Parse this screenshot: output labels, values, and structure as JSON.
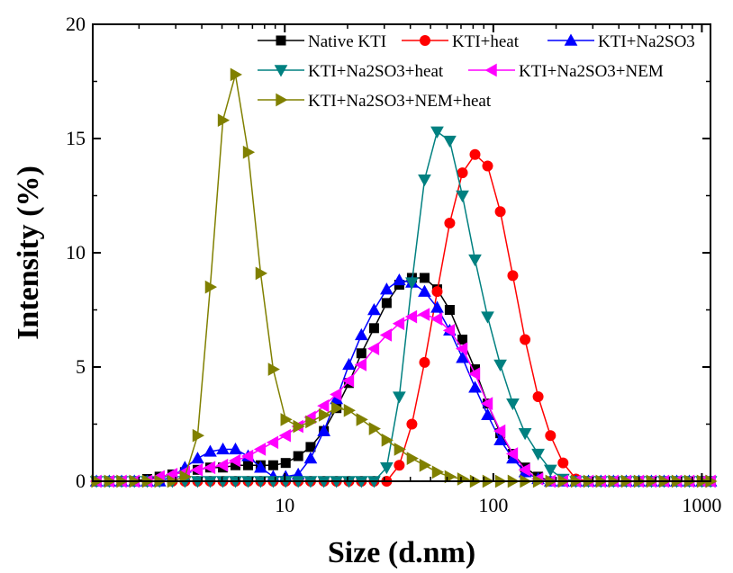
{
  "chart_data": {
    "type": "line",
    "title": "",
    "xlabel": "Size (d.nm)",
    "ylabel": "Intensity (%)",
    "x_scale": "log",
    "xlim": [
      1.2,
      1100
    ],
    "ylim": [
      0,
      20
    ],
    "x_ticks": [
      10,
      100,
      1000
    ],
    "y_ticks": [
      0,
      5,
      10,
      15,
      20
    ],
    "grid": false,
    "legend_position": "top-right",
    "series": [
      {
        "name": "Native KTI",
        "color": "#000000",
        "marker": "square",
        "x": [
          1.25,
          1.44,
          1.65,
          1.9,
          2.19,
          2.51,
          2.89,
          3.32,
          3.82,
          4.39,
          5.05,
          5.8,
          6.67,
          7.66,
          8.8,
          10.1,
          11.6,
          13.3,
          15.4,
          17.7,
          20.3,
          23.3,
          26.8,
          30.8,
          35.4,
          40.7,
          46.8,
          53.8,
          61.8,
          71.1,
          81.7,
          93.9,
          108,
          124,
          142,
          164,
          188,
          216,
          249,
          286,
          328,
          377,
          434,
          499,
          573,
          659,
          758,
          871,
          1001,
          1101
        ],
        "y": [
          0,
          0,
          0,
          0,
          0.1,
          0.2,
          0.3,
          0.4,
          0.5,
          0.6,
          0.6,
          0.7,
          0.7,
          0.7,
          0.7,
          0.8,
          1.1,
          1.5,
          2.2,
          3.2,
          4.3,
          5.6,
          6.7,
          7.8,
          8.6,
          8.9,
          8.9,
          8.4,
          7.5,
          6.2,
          4.9,
          3.4,
          2.1,
          1.2,
          0.6,
          0.2,
          0,
          0,
          0,
          0,
          0,
          0,
          0,
          0,
          0,
          0,
          0,
          0,
          0,
          0
        ]
      },
      {
        "name": "KTI+heat",
        "color": "#ff0000",
        "marker": "circle",
        "x": [
          1.25,
          1.44,
          1.65,
          1.9,
          2.19,
          2.51,
          2.89,
          3.32,
          3.82,
          4.39,
          5.05,
          5.8,
          6.67,
          7.66,
          8.8,
          10.1,
          11.6,
          13.3,
          15.4,
          17.7,
          20.3,
          23.3,
          26.8,
          30.8,
          35.4,
          40.7,
          46.8,
          53.8,
          61.8,
          71.1,
          81.7,
          93.9,
          108,
          124,
          142,
          164,
          188,
          216,
          249,
          286,
          328,
          377,
          434,
          499,
          573,
          659,
          758,
          871,
          1001,
          1101
        ],
        "y": [
          0,
          0,
          0,
          0,
          0,
          0,
          0,
          0,
          0,
          0,
          0,
          0,
          0,
          0,
          0,
          0,
          0,
          0,
          0,
          0,
          0,
          0,
          0,
          0,
          0.7,
          2.5,
          5.2,
          8.3,
          11.3,
          13.5,
          14.3,
          13.8,
          11.8,
          9.0,
          6.2,
          3.7,
          2.0,
          0.8,
          0.1,
          0,
          0,
          0,
          0,
          0,
          0,
          0,
          0,
          0,
          0,
          0
        ]
      },
      {
        "name": "KTI+Na2SO3",
        "color": "#0000ff",
        "marker": "triangle-up",
        "x": [
          1.25,
          1.44,
          1.65,
          1.9,
          2.19,
          2.51,
          2.89,
          3.32,
          3.82,
          4.39,
          5.05,
          5.8,
          6.67,
          7.66,
          8.8,
          10.1,
          11.6,
          13.3,
          15.4,
          17.7,
          20.3,
          23.3,
          26.8,
          30.8,
          35.4,
          40.7,
          46.8,
          53.8,
          61.8,
          71.1,
          81.7,
          93.9,
          108,
          124,
          142,
          164,
          188,
          216,
          249,
          286,
          328,
          377,
          434,
          499,
          573,
          659,
          758,
          871,
          1001,
          1101
        ],
        "y": [
          0,
          0,
          0,
          0,
          0,
          0,
          0.2,
          0.6,
          1.0,
          1.3,
          1.4,
          1.4,
          1.1,
          0.6,
          0.2,
          0.2,
          0.3,
          1.0,
          2.2,
          3.6,
          5.1,
          6.4,
          7.5,
          8.4,
          8.8,
          8.7,
          8.3,
          7.6,
          6.6,
          5.4,
          4.1,
          2.9,
          1.8,
          1.0,
          0.4,
          0.1,
          0,
          0,
          0,
          0,
          0,
          0,
          0,
          0,
          0,
          0,
          0,
          0,
          0,
          0
        ]
      },
      {
        "name": "KTI+Na2SO3+heat",
        "color": "#008080",
        "marker": "triangle-down",
        "x": [
          1.25,
          1.44,
          1.65,
          1.9,
          2.19,
          2.51,
          2.89,
          3.32,
          3.82,
          4.39,
          5.05,
          5.8,
          6.67,
          7.66,
          8.8,
          10.1,
          11.6,
          13.3,
          15.4,
          17.7,
          20.3,
          23.3,
          26.8,
          30.8,
          35.4,
          40.7,
          46.8,
          53.8,
          61.8,
          71.1,
          81.7,
          93.9,
          108,
          124,
          142,
          164,
          188,
          216,
          249,
          286,
          328,
          377,
          434,
          499,
          573,
          659,
          758,
          871,
          1001,
          1101
        ],
        "y": [
          0,
          0,
          0,
          0,
          0,
          0,
          0,
          0,
          0,
          0,
          0,
          0,
          0,
          0,
          0,
          0,
          0,
          0,
          0,
          0,
          0,
          0,
          0,
          0.6,
          3.7,
          8.7,
          13.2,
          15.3,
          14.9,
          12.5,
          9.7,
          7.2,
          5.1,
          3.4,
          2.1,
          1.2,
          0.5,
          0.1,
          0,
          0,
          0,
          0,
          0,
          0,
          0,
          0,
          0,
          0,
          0,
          0
        ]
      },
      {
        "name": "KTI+Na2SO3+NEM",
        "color": "#ff00ff",
        "marker": "triangle-left",
        "x": [
          1.25,
          1.44,
          1.65,
          1.9,
          2.19,
          2.51,
          2.89,
          3.32,
          3.82,
          4.39,
          5.05,
          5.8,
          6.67,
          7.66,
          8.8,
          10.1,
          11.6,
          13.3,
          15.4,
          17.7,
          20.3,
          23.3,
          26.8,
          30.8,
          35.4,
          40.7,
          46.8,
          53.8,
          61.8,
          71.1,
          81.7,
          93.9,
          108,
          124,
          142,
          164,
          188,
          216,
          249,
          286,
          328,
          377,
          434,
          499,
          573,
          659,
          758,
          871,
          1001,
          1101
        ],
        "y": [
          0,
          0,
          0,
          0,
          0,
          0.2,
          0.3,
          0.4,
          0.5,
          0.6,
          0.7,
          0.9,
          1.1,
          1.4,
          1.7,
          2.0,
          2.4,
          2.8,
          3.3,
          3.8,
          4.4,
          5.1,
          5.8,
          6.4,
          6.9,
          7.2,
          7.3,
          7.1,
          6.6,
          5.8,
          4.7,
          3.4,
          2.2,
          1.2,
          0.5,
          0.1,
          0,
          0,
          0,
          0,
          0,
          0,
          0,
          0,
          0,
          0,
          0,
          0,
          0,
          0
        ]
      },
      {
        "name": "KTI+Na2SO3+NEM+heat",
        "color": "#808000",
        "marker": "triangle-right",
        "x": [
          1.25,
          1.44,
          1.65,
          1.9,
          2.19,
          2.51,
          2.89,
          3.32,
          3.82,
          4.39,
          5.05,
          5.8,
          6.67,
          7.66,
          8.8,
          10.1,
          11.6,
          13.3,
          15.4,
          17.7,
          20.3,
          23.3,
          26.8,
          30.8,
          35.4,
          40.7,
          46.8,
          53.8,
          61.8,
          71.1,
          81.7,
          93.9,
          108,
          124,
          142,
          164,
          188,
          216,
          249,
          286,
          328,
          377,
          434,
          499,
          573,
          659,
          758,
          871,
          1001,
          1101
        ],
        "y": [
          0,
          0,
          0,
          0,
          0,
          0,
          0,
          0.2,
          2.0,
          8.5,
          15.8,
          17.8,
          14.4,
          9.1,
          4.9,
          2.7,
          2.4,
          2.6,
          2.9,
          3.2,
          3.1,
          2.7,
          2.3,
          1.8,
          1.4,
          1.0,
          0.7,
          0.4,
          0.2,
          0.1,
          0,
          0,
          0,
          0,
          0,
          0,
          0,
          0,
          0,
          0,
          0,
          0,
          0,
          0,
          0,
          0,
          0,
          0,
          0,
          0
        ]
      }
    ]
  }
}
